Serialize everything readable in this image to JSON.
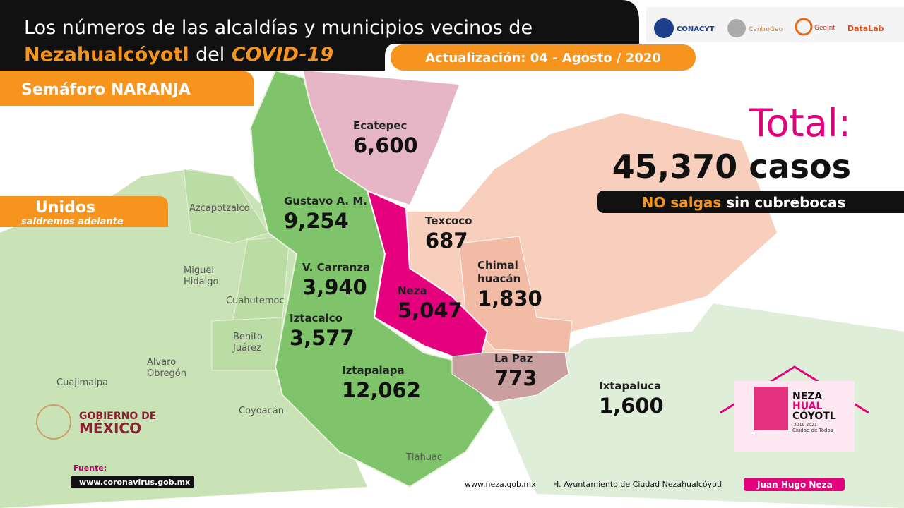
{
  "header": {
    "title_line1": "Los números de las alcaldías y municipios vecinos de",
    "title_line2": {
      "place": "Nezahualcóyotl",
      "joiner": "del",
      "disease": "COVID-19"
    },
    "update": "Actualización: 04 - Agosto / 2020",
    "alert": "Semáforo NARANJA"
  },
  "logos": [
    "CONACYT",
    "CentroGeo",
    "GeoInt",
    "DataLab"
  ],
  "motto": {
    "line1": "Unidos",
    "line2": "saldremos adelante"
  },
  "total": {
    "label": "Total:",
    "value": "45,370 casos"
  },
  "warning": {
    "emphasis": "NO salgas",
    "rest": "sin cubrebocas"
  },
  "regions": [
    {
      "name": [
        "Ecatepec"
      ],
      "cases": "6,600"
    },
    {
      "name": [
        "Gustavo A. M."
      ],
      "cases": "9,254"
    },
    {
      "name": [
        "V. Carranza"
      ],
      "cases": "3,940"
    },
    {
      "name": [
        "Iztacalco"
      ],
      "cases": "3,577"
    },
    {
      "name": [
        "Neza"
      ],
      "cases": "5,047"
    },
    {
      "name": [
        "Texcoco"
      ],
      "cases": "687"
    },
    {
      "name": [
        "Chimal",
        "huacán"
      ],
      "cases": "1,830"
    },
    {
      "name": [
        "Iztapalapa"
      ],
      "cases": "12,062"
    },
    {
      "name": [
        "La Paz"
      ],
      "cases": "773"
    },
    {
      "name": [
        "Ixtapaluca"
      ],
      "cases": "1,600"
    }
  ],
  "other_areas": [
    [
      "Azcapotzalco"
    ],
    [
      "Miguel",
      "Hidalgo"
    ],
    [
      "Cuahutemoc"
    ],
    [
      "Benito",
      "Juárez"
    ],
    [
      "Alvaro",
      "Obregón"
    ],
    [
      "Cuajimalpa"
    ],
    [
      "Coyoacán"
    ],
    [
      "Tlahuac"
    ]
  ],
  "government": [
    "GOBIERNO DE",
    "MÉXICO"
  ],
  "source": {
    "label": "Fuente:",
    "url": "www.coronavirus.gob.mx"
  },
  "footer": {
    "site": "www.neza.gob.mx",
    "council": "H. Ayuntamiento de Ciudad Nezahualcóyotl",
    "mayor": "Juan Hugo Neza"
  },
  "brand": {
    "lines": [
      "NEZA",
      "HUAL",
      "CÓYOTL"
    ],
    "period": "2019-2021",
    "tagline": "Ciudad de Todos"
  }
}
